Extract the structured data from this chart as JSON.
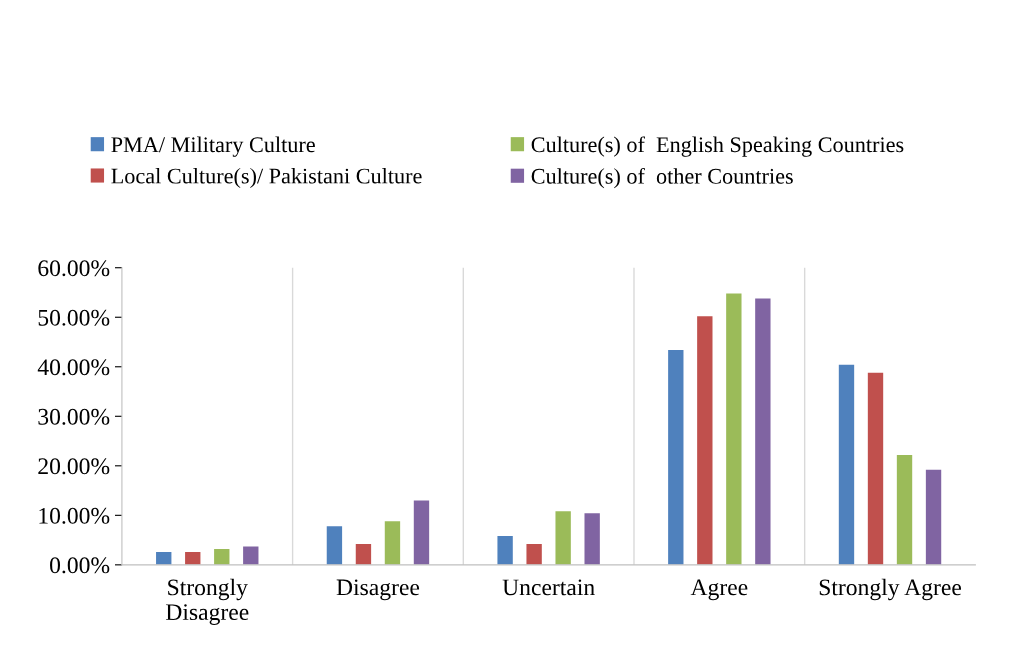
{
  "chart_data": {
    "type": "bar",
    "categories": [
      "Strongly Disagree",
      "Disagree",
      "Uncertain",
      "Agree",
      "Strongly Agree"
    ],
    "series": [
      {
        "name": "PMA/ Military Culture",
        "color": "#4f81bd",
        "values": [
          2.6,
          7.8,
          5.8,
          43.4,
          40.4
        ]
      },
      {
        "name": "Local Culture(s)/ Pakistani Culture",
        "color": "#c0504d",
        "values": [
          2.6,
          4.2,
          4.2,
          50.2,
          38.8
        ]
      },
      {
        "name": "Culture(s) of  English Speaking Countries",
        "color": "#9bbb59",
        "values": [
          3.2,
          8.8,
          10.8,
          54.8,
          22.2
        ]
      },
      {
        "name": "Culture(s) of  other Countries",
        "color": "#8064a2",
        "values": [
          3.7,
          13.0,
          10.4,
          53.8,
          19.2
        ]
      }
    ],
    "ylim": [
      0,
      60
    ],
    "yticks": [
      {
        "value": 0,
        "label": "0.00%"
      },
      {
        "value": 10,
        "label": "10.00%"
      },
      {
        "value": 20,
        "label": "20.00%"
      },
      {
        "value": 30,
        "label": "30.00%"
      },
      {
        "value": 40,
        "label": "40.00%"
      },
      {
        "value": 50,
        "label": "50.00%"
      },
      {
        "value": 60,
        "label": "60.00%"
      }
    ],
    "grid": "x",
    "legend": "top"
  }
}
